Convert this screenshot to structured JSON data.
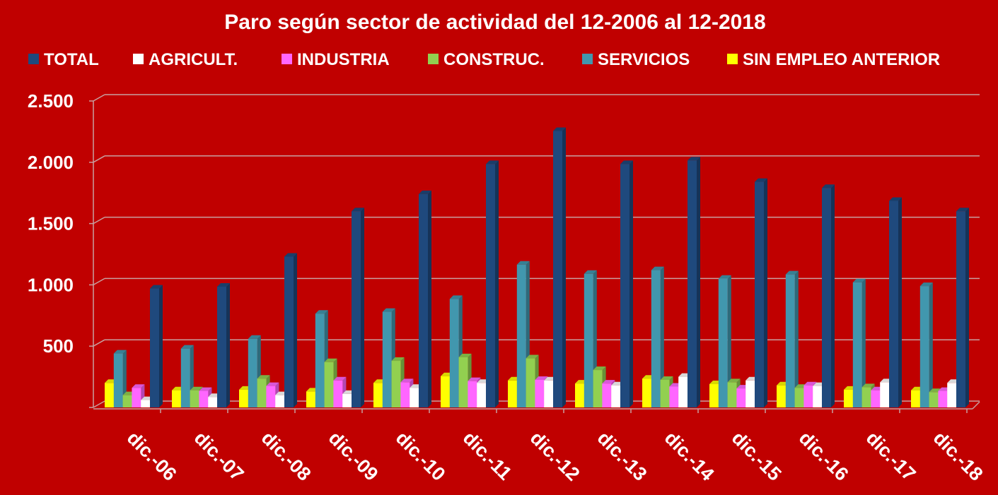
{
  "chart_data": {
    "type": "bar",
    "title": "Paro según sector de actividad del 12-2006 al 12-2018",
    "xlabel": "",
    "ylabel": "",
    "ylim": [
      0,
      2500
    ],
    "yticks": [
      0,
      500,
      1000,
      1500,
      2000,
      2500
    ],
    "ytick_labels": [
      "",
      "500",
      "1.000",
      "1.500",
      "2.000",
      "2.500"
    ],
    "grid": true,
    "legend_position": "top",
    "categories": [
      "dic.-06",
      "dic.-07",
      "dic.-08",
      "dic.-09",
      "dic.-10",
      "dic.-11",
      "dic.-12",
      "dic.-13",
      "dic.-14",
      "dic.-15",
      "dic.-16",
      "dic.-17",
      "dic.-18"
    ],
    "legend_order": [
      "TOTAL",
      "AGRICULT.",
      "INDUSTRIA",
      "CONSTRUC.",
      "SERVICIOS",
      "SIN EMPLEO ANTERIOR"
    ],
    "series": [
      {
        "name": "SIN EMPLEO ANTERIOR",
        "color": "#ffff00",
        "values": [
          200,
          140,
          145,
          130,
          200,
          255,
          220,
          195,
          235,
          190,
          180,
          145,
          140
        ]
      },
      {
        "name": "SERVICIOS",
        "color": "#4197ae",
        "values": [
          440,
          480,
          560,
          765,
          780,
          885,
          1165,
          1090,
          1120,
          1050,
          1085,
          1020,
          990
        ]
      },
      {
        "name": "CONSTRUC.",
        "color": "#92d050",
        "values": [
          100,
          140,
          235,
          370,
          380,
          410,
          400,
          305,
          225,
          205,
          160,
          165,
          125
        ]
      },
      {
        "name": "INDUSTRIA",
        "color": "#ff66ff",
        "values": [
          160,
          135,
          175,
          220,
          205,
          215,
          225,
          195,
          170,
          155,
          180,
          140,
          135
        ]
      },
      {
        "name": "AGRICULT.",
        "color": "#ffffff",
        "values": [
          60,
          85,
          100,
          110,
          160,
          200,
          220,
          180,
          250,
          220,
          175,
          205,
          200
        ]
      },
      {
        "name": "TOTAL",
        "color": "#1f497d",
        "values": [
          970,
          985,
          1230,
          1600,
          1740,
          1985,
          2255,
          1985,
          2015,
          1840,
          1790,
          1685,
          1600
        ]
      }
    ]
  }
}
